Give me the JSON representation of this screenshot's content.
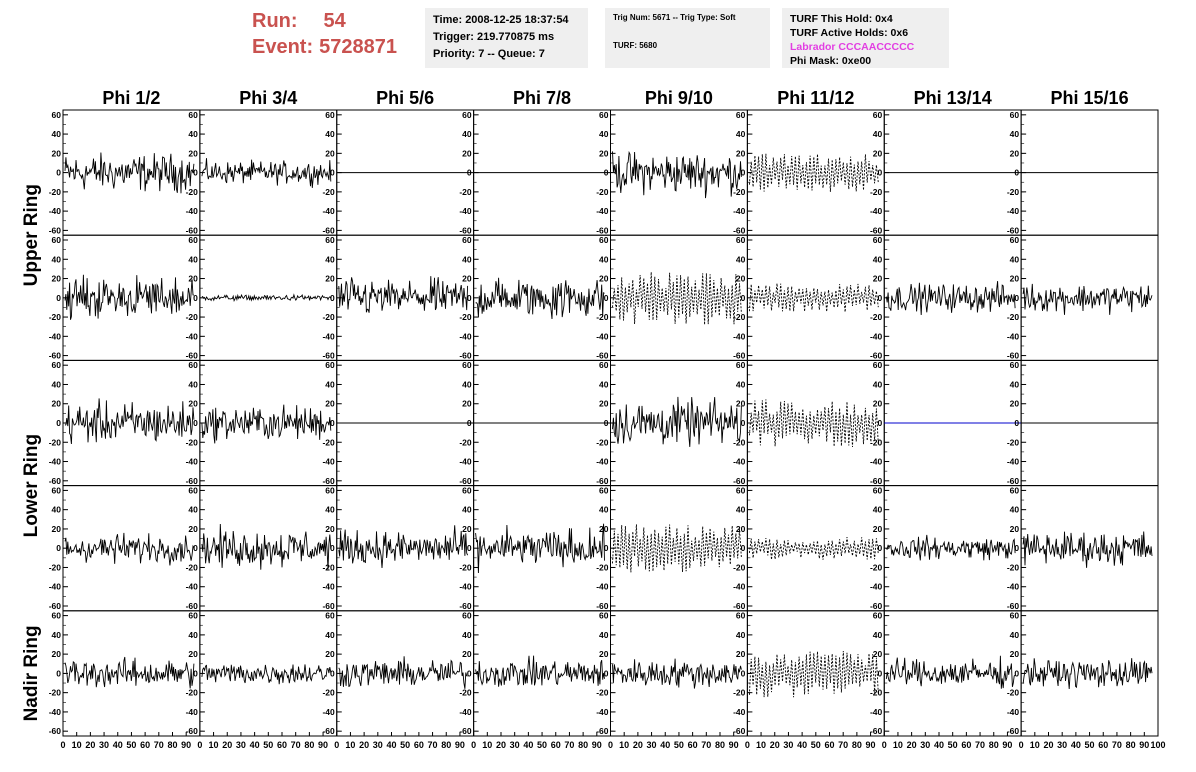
{
  "header": {
    "run_label": "Run:",
    "run_value": "54",
    "event_label": "Event:",
    "event_value": "5728871"
  },
  "time_box": {
    "time": "Time: 2008-12-25 18:37:54",
    "trigger": "Trigger: 219.770875 ms",
    "priority": "Priority: 7 -- Queue: 7"
  },
  "trig_box": {
    "trig": "Trig Num: 5671 -- Trig Type: Soft",
    "turf": "TURF: 5680"
  },
  "turf_box": {
    "this_hold": "TURF This Hold: 0x4",
    "active_holds": "TURF Active Holds: 0x6",
    "labrador": "Labrador CCCAACCCCC",
    "phi_mask": "Phi Mask: 0xe00"
  },
  "colors": {
    "run_text": "#c9524f",
    "labrador_text": "#e23ee2",
    "trace": "#000000",
    "alt_trace": "#0000cc",
    "panel_bg": "#efefef"
  },
  "chart_data": {
    "type": "line",
    "columns": [
      "Phi 1/2",
      "Phi 3/4",
      "Phi 5/6",
      "Phi 7/8",
      "Phi 9/10",
      "Phi 11/12",
      "Phi 13/14",
      "Phi 15/16"
    ],
    "row_group_labels": [
      "Upper Ring",
      "Lower Ring",
      "Nadir Ring"
    ],
    "rows": 5,
    "ylim": [
      -65,
      65
    ],
    "y_ticks": [
      -60,
      -40,
      -20,
      0,
      20,
      40,
      60
    ],
    "xlim": [
      0,
      100
    ],
    "x_tick_labels": [
      "0",
      "10",
      "20",
      "30",
      "40",
      "50",
      "60",
      "70",
      "80",
      "90",
      "100"
    ],
    "panels": [
      [
        "noise20",
        "noise12",
        "flat",
        "flat",
        "noise22",
        "dashed20",
        "flat",
        "flat"
      ],
      [
        "noise22",
        "noise3",
        "noise20",
        "noise22",
        "dashed28",
        "dashed15",
        "noise15",
        "noise15"
      ],
      [
        "noise22",
        "noise18",
        "flat",
        "flat",
        "noise24",
        "dashed25",
        "flatblue",
        "flat"
      ],
      [
        "noise15",
        "noise20",
        "noise18",
        "noise20",
        "dashed25",
        "dashed12",
        "noise12",
        "noise18"
      ],
      [
        "noise15",
        "noise12",
        "noise15",
        "noise15",
        "noise15",
        "dashed25",
        "noise15",
        "noise15"
      ]
    ]
  }
}
